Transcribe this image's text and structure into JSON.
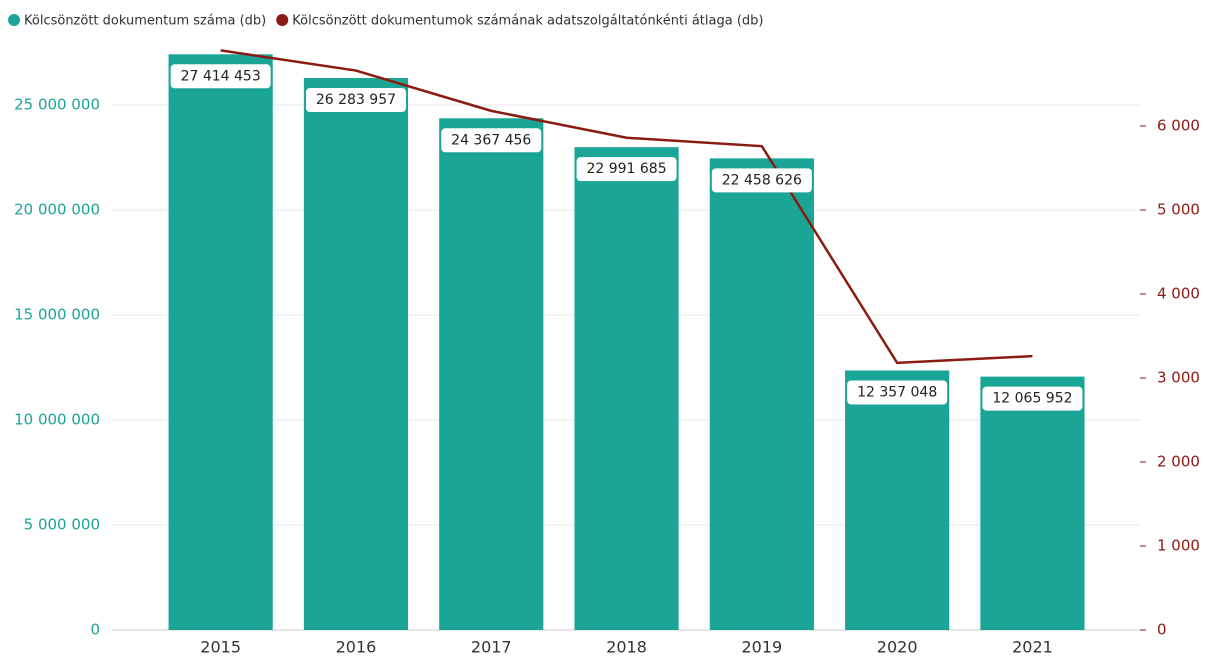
{
  "chart_data": {
    "type": "bar-line",
    "categories": [
      "2015",
      "2016",
      "2017",
      "2018",
      "2019",
      "2020",
      "2021"
    ],
    "series": [
      {
        "name": "Kölcsönzött dokumentum száma (db)",
        "color": "#1ba597",
        "type": "bar",
        "values": [
          27414453,
          26283957,
          24367456,
          22991685,
          22458626,
          12357048,
          12065952
        ],
        "value_labels": [
          "27 414 453",
          "26 283 957",
          "24 367 456",
          "22 991 685",
          "22 458 626",
          "12 357 048",
          "12 065 952"
        ]
      },
      {
        "name": "Kölcsönzött dokumentumok számának adatszolgáltatónkénti átlaga (db)",
        "color": "#8b1a10",
        "type": "line",
        "axis": "y2",
        "values": [
          6900,
          6660,
          6180,
          5860,
          5760,
          3180,
          3260
        ]
      }
    ],
    "ylim": [
      0,
      28000000
    ],
    "yticks": [
      0,
      {
        "value": 5000000,
        "label": "5 000 000"
      },
      {
        "value": 10000000,
        "label": "10 000 000"
      },
      {
        "value": 15000000,
        "label": "15 000 000"
      },
      {
        "value": 20000000,
        "label": "20 000 000"
      },
      {
        "value": 25000000,
        "label": "25 000 000"
      }
    ],
    "y2lim": [
      0,
      7000
    ],
    "y2ticks": [
      0,
      {
        "value": 1000,
        "label": "1 000"
      },
      {
        "value": 2000,
        "label": "2 000"
      },
      {
        "value": 3000,
        "label": "3 000"
      },
      {
        "value": 4000,
        "label": "4 000"
      },
      {
        "value": 5000,
        "label": "5 000"
      },
      {
        "value": 6000,
        "label": "6 000"
      }
    ],
    "grid": true,
    "legend": "top-left"
  }
}
